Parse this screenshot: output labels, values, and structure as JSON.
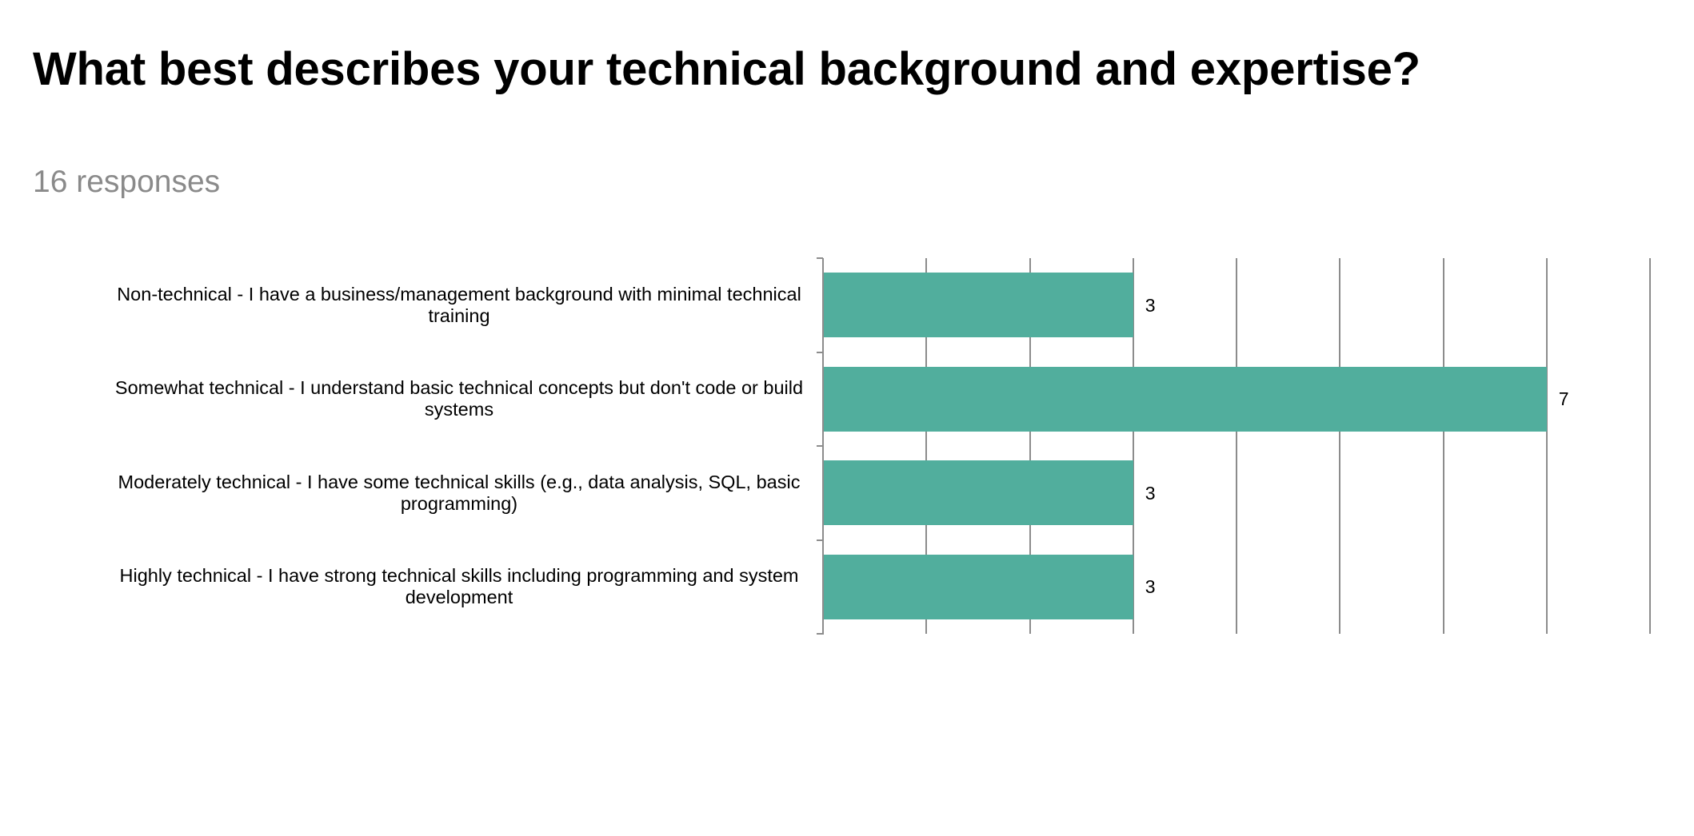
{
  "header": {
    "title": "What best describes your technical background and expertise?",
    "subtitle": "16 responses"
  },
  "colors": {
    "bar": "#51AE9D",
    "grid": "#8C8C8C",
    "subtitle": "#8A8A8A"
  },
  "chart_data": {
    "type": "bar",
    "orientation": "horizontal",
    "title": "What best describes your technical background and expertise?",
    "subtitle": "16 responses",
    "categories": [
      "Non-technical - I have a business/management background with minimal technical training",
      "Somewhat technical - I understand basic technical concepts but don't code or build systems",
      "Moderately technical - I have some technical skills (e.g., data analysis, SQL, basic programming)",
      "Highly technical - I have strong technical skills including programming and system development"
    ],
    "values": [
      3,
      7,
      3,
      3
    ],
    "value_labels": [
      "3",
      "7",
      "3",
      "3"
    ],
    "xlabel": "",
    "ylabel": "",
    "xlim": [
      0,
      8
    ],
    "x_gridlines": [
      0,
      1,
      2,
      3,
      4,
      5,
      6,
      7,
      8
    ],
    "x_tick_labels_visible": false,
    "grid": true,
    "legend": "none"
  }
}
